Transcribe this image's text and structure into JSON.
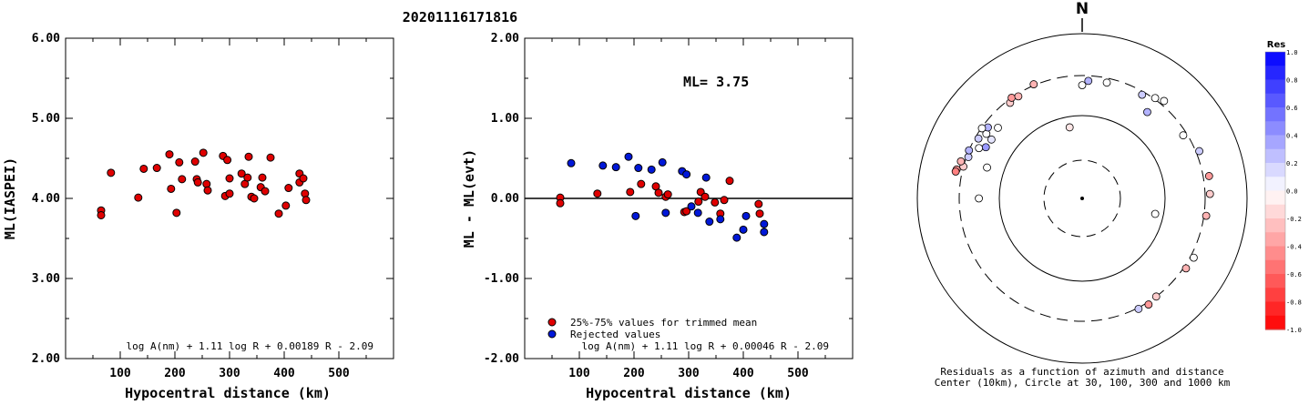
{
  "title": "20201116171816",
  "chart_data": [
    {
      "type": "scatter",
      "ylabel": "ML(IASPEI)",
      "xlabel": "Hypocentral distance (km)",
      "xlim": [
        0,
        600
      ],
      "ylim": [
        2.0,
        6.0
      ],
      "x_ticks": [
        "100",
        "200",
        "300",
        "400",
        "500"
      ],
      "y_ticks": [
        "2.00",
        "3.00",
        "4.00",
        "5.00",
        "6.00"
      ],
      "formula": "log A(nm) + 1.11 log R + 0.00189 R - 2.09",
      "series": [
        {
          "color": "#e00000",
          "points": [
            [
              65,
              3.85
            ],
            [
              65,
              3.79
            ],
            [
              83,
              4.32
            ],
            [
              133,
              4.01
            ],
            [
              143,
              4.37
            ],
            [
              167,
              4.38
            ],
            [
              190,
              4.55
            ],
            [
              193,
              4.12
            ],
            [
              203,
              3.82
            ],
            [
              208,
              4.45
            ],
            [
              213,
              4.24
            ],
            [
              237,
              4.46
            ],
            [
              240,
              4.24
            ],
            [
              242,
              4.2
            ],
            [
              252,
              4.57
            ],
            [
              258,
              4.18
            ],
            [
              260,
              4.1
            ],
            [
              288,
              4.53
            ],
            [
              292,
              4.03
            ],
            [
              296,
              4.48
            ],
            [
              300,
              4.06
            ],
            [
              300,
              4.25
            ],
            [
              322,
              4.31
            ],
            [
              328,
              4.18
            ],
            [
              333,
              4.26
            ],
            [
              335,
              4.52
            ],
            [
              340,
              4.02
            ],
            [
              345,
              4.0
            ],
            [
              357,
              4.14
            ],
            [
              360,
              4.26
            ],
            [
              365,
              4.09
            ],
            [
              375,
              4.51
            ],
            [
              390,
              3.81
            ],
            [
              403,
              3.91
            ],
            [
              408,
              4.13
            ],
            [
              428,
              4.31
            ],
            [
              428,
              4.2
            ],
            [
              435,
              4.25
            ],
            [
              438,
              4.06
            ],
            [
              440,
              3.98
            ]
          ]
        }
      ]
    },
    {
      "type": "scatter",
      "ylabel": "ML - ML(evt)",
      "xlabel": "Hypocentral distance (km)",
      "xlim": [
        0,
        600
      ],
      "ylim": [
        -2.0,
        2.0
      ],
      "x_ticks": [
        "100",
        "200",
        "300",
        "400",
        "500"
      ],
      "y_ticks": [
        "-2.00",
        "-1.00",
        "0.00",
        "1.00",
        "2.00"
      ],
      "annotation": "ML= 3.75",
      "formula": "log A(nm) + 1.11 log R + 0.00046 R - 2.09",
      "legend": [
        {
          "label": "25%-75% values for trimmed mean",
          "color": "#e00000"
        },
        {
          "label": "Rejected values",
          "color": "#0018d8"
        }
      ],
      "series": [
        {
          "name": "25%-75% values for trimmed mean",
          "color": "#e00000",
          "points": [
            [
              65,
              0.01
            ],
            [
              65,
              -0.06
            ],
            [
              133,
              0.06
            ],
            [
              193,
              0.08
            ],
            [
              213,
              0.18
            ],
            [
              240,
              0.15
            ],
            [
              245,
              0.07
            ],
            [
              258,
              0.02
            ],
            [
              262,
              0.05
            ],
            [
              292,
              -0.17
            ],
            [
              296,
              -0.16
            ],
            [
              318,
              -0.04
            ],
            [
              322,
              0.08
            ],
            [
              330,
              0.02
            ],
            [
              348,
              -0.05
            ],
            [
              358,
              -0.19
            ],
            [
              365,
              -0.02
            ],
            [
              375,
              0.22
            ],
            [
              428,
              -0.07
            ],
            [
              430,
              -0.19
            ]
          ]
        },
        {
          "name": "Rejected values",
          "color": "#0018d8",
          "points": [
            [
              85,
              0.44
            ],
            [
              143,
              0.41
            ],
            [
              167,
              0.39
            ],
            [
              190,
              0.52
            ],
            [
              203,
              -0.22
            ],
            [
              208,
              0.38
            ],
            [
              232,
              0.36
            ],
            [
              252,
              0.45
            ],
            [
              258,
              -0.18
            ],
            [
              288,
              0.34
            ],
            [
              296,
              0.3
            ],
            [
              305,
              -0.1
            ],
            [
              317,
              -0.18
            ],
            [
              332,
              0.26
            ],
            [
              338,
              -0.29
            ],
            [
              358,
              -0.26
            ],
            [
              388,
              -0.49
            ],
            [
              400,
              -0.39
            ],
            [
              405,
              -0.22
            ],
            [
              438,
              -0.32
            ],
            [
              438,
              -0.42
            ]
          ]
        }
      ]
    }
  ],
  "polar": {
    "north_label": "N",
    "caption_line1": "Residuals as a function of azimuth and distance",
    "caption_line2": "Center (10km), Circle at 30, 100, 300 and 1000 km",
    "colorbar": {
      "title": "Res",
      "tick_labels": [
        "1.0",
        "0.8",
        "0.6",
        "0.4",
        "0.2",
        "0.0",
        "-0.2",
        "-0.4",
        "-0.6",
        "-0.8",
        "-1.0"
      ]
    },
    "stations": [
      {
        "az": 0,
        "dist": 230,
        "res": 0.0
      },
      {
        "az": 3,
        "dist": 260,
        "res": 0.3
      },
      {
        "az": 12,
        "dist": 265,
        "res": 0.0
      },
      {
        "az": 30,
        "dist": 275,
        "res": 0.2
      },
      {
        "az": 36,
        "dist": 310,
        "res": 0.0
      },
      {
        "az": 40,
        "dist": 340,
        "res": 0.0
      },
      {
        "az": 37,
        "dist": 200,
        "res": 0.3
      },
      {
        "az": 58,
        "dist": 270,
        "res": 0.0
      },
      {
        "az": 68,
        "dist": 330,
        "res": 0.2
      },
      {
        "az": 80,
        "dist": 355,
        "res": -0.4
      },
      {
        "az": 88,
        "dist": 345,
        "res": -0.2
      },
      {
        "az": 98,
        "dist": 320,
        "res": -0.3
      },
      {
        "az": 118,
        "dist": 330,
        "res": 0.0
      },
      {
        "az": 124,
        "dist": 320,
        "res": -0.3
      },
      {
        "az": 143,
        "dist": 300,
        "res": -0.2
      },
      {
        "az": 148,
        "dist": 320,
        "res": -0.4
      },
      {
        "az": 153,
        "dist": 310,
        "res": 0.2
      },
      {
        "az": 102,
        "dist": 80,
        "res": 0.0
      },
      {
        "az": 350,
        "dist": 75,
        "res": -0.1
      },
      {
        "az": 310,
        "dist": 210,
        "res": 0.0
      },
      {
        "az": 296,
        "dist": 240,
        "res": 0.0
      },
      {
        "az": 298,
        "dist": 205,
        "res": 0.4
      },
      {
        "az": 303,
        "dist": 200,
        "res": 0.1
      },
      {
        "az": 304,
        "dist": 245,
        "res": 0.0
      },
      {
        "az": 290,
        "dist": 285,
        "res": 0.2
      },
      {
        "az": 293,
        "dist": 300,
        "res": 0.3
      },
      {
        "az": 300,
        "dist": 275,
        "res": 0.2
      },
      {
        "az": 307,
        "dist": 262,
        "res": 0.3
      },
      {
        "az": 305,
        "dist": 295,
        "res": 0.0
      },
      {
        "az": 285,
        "dist": 300,
        "res": -0.2
      },
      {
        "az": 287,
        "dist": 335,
        "res": -0.3
      },
      {
        "az": 283,
        "dist": 355,
        "res": -0.4
      },
      {
        "az": 282,
        "dist": 360,
        "res": -0.5
      },
      {
        "az": 323,
        "dist": 275,
        "res": -0.2
      },
      {
        "az": 325,
        "dist": 300,
        "res": -0.4
      },
      {
        "az": 328,
        "dist": 280,
        "res": -0.3
      },
      {
        "az": 337,
        "dist": 310,
        "res": -0.3
      },
      {
        "az": 270,
        "dist": 175,
        "res": 0.0
      },
      {
        "az": 288,
        "dist": 160,
        "res": 0.0
      }
    ]
  }
}
